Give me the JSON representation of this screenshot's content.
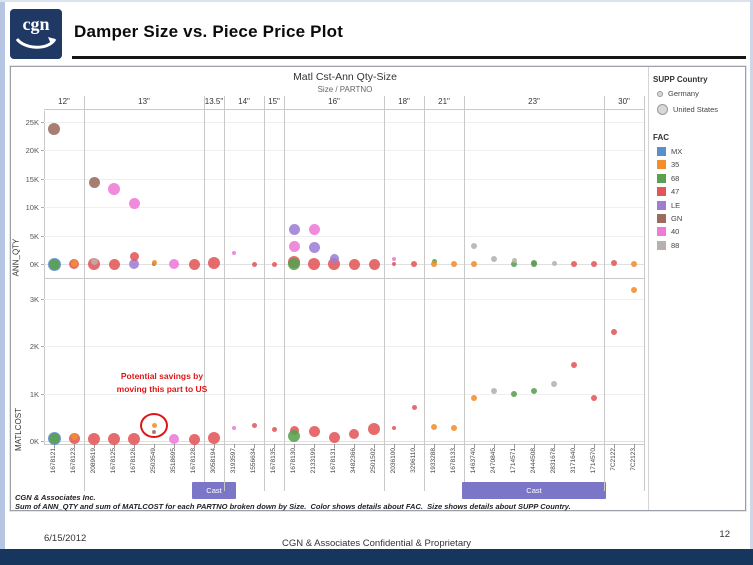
{
  "header": {
    "logo": "cgn",
    "title": "Damper Size vs. Piece Price Plot"
  },
  "footnotes": {
    "line1": "CGN & Associates Inc.",
    "line2": "Sum of ANN_QTY and sum of MATLCOST for each PARTNO broken down by Size.  Color shows details about FAC.  Size shows details about SUPP Country."
  },
  "slide_footer": {
    "date": "6/15/2012",
    "center": "CGN & Associates Confidential & Proprietary",
    "page": "12"
  },
  "legend": {
    "supp_country": {
      "title": "SUPP Country",
      "items": [
        {
          "label": "Germany",
          "d": 6
        },
        {
          "label": "United States",
          "d": 11
        }
      ]
    },
    "fac": {
      "title": "FAC",
      "items": [
        {
          "code": "MX",
          "color": "#5b8fc9"
        },
        {
          "code": "35",
          "color": "#f28e2b"
        },
        {
          "code": "68",
          "color": "#59a14f"
        },
        {
          "code": "47",
          "color": "#e15759"
        },
        {
          "code": "LE",
          "color": "#9d7ed4"
        },
        {
          "code": "GN",
          "color": "#9c6b5e"
        },
        {
          "code": "40",
          "color": "#ed7bd7"
        },
        {
          "code": "88",
          "color": "#b7b0ad"
        }
      ]
    }
  },
  "annotation": {
    "lines": [
      "Potential savings by",
      "moving this part to US"
    ],
    "circled_part": "2503549"
  },
  "cast_label": "Cast",
  "chart_data": {
    "type": "scatter",
    "title": "Matl Cst-Ann Qty-Size",
    "x_axis_label": "Size / PARTNO",
    "legend_position": "right",
    "grid": "faint horizontal gridlines, panel column dividers",
    "panels": [
      {
        "label": "ANN_QTY",
        "ylim": [
          0,
          25
        ],
        "unit": "K",
        "ticks": [
          {
            "t": "0K",
            "v": 0
          },
          {
            "t": "5K",
            "v": 5
          },
          {
            "t": "10K",
            "v": 10
          },
          {
            "t": "15K",
            "v": 15
          },
          {
            "t": "20K",
            "v": 20
          },
          {
            "t": "25K",
            "v": 25
          }
        ]
      },
      {
        "label": "MATLCOST",
        "ylim": [
          0,
          3
        ],
        "unit": "K",
        "ticks": [
          {
            "t": "0K",
            "v": 0
          },
          {
            "t": "1K",
            "v": 1
          },
          {
            "t": "2K",
            "v": 2
          },
          {
            "t": "3K",
            "v": 3
          }
        ]
      }
    ],
    "sizes": [
      {
        "label": "12\"",
        "parts": [
          {
            "pn": "1678121",
            "top": [
              {
                "f": "MX",
                "v": 0,
                "d": 13
              },
              {
                "f": "68",
                "v": 0,
                "d": 11
              },
              {
                "f": "GN",
                "v": 23.7,
                "d": 12
              }
            ],
            "bot": [
              {
                "f": "MX",
                "v": 0.05,
                "d": 13
              },
              {
                "f": "68",
                "v": 0.05,
                "d": 11
              }
            ]
          },
          {
            "pn": "1678123",
            "top": [
              {
                "f": "47",
                "v": 0,
                "d": 10
              },
              {
                "f": "35",
                "v": 0.1,
                "d": 7
              }
            ],
            "bot": [
              {
                "f": "47",
                "v": 0.05,
                "d": 11
              },
              {
                "f": "35",
                "v": 0.1,
                "d": 7
              }
            ]
          }
        ]
      },
      {
        "label": "13\"",
        "parts": [
          {
            "pn": "2089619",
            "top": [
              {
                "f": "47",
                "v": 0,
                "d": 12
              },
              {
                "f": "88",
                "v": 0.4,
                "d": 7
              },
              {
                "f": "GN",
                "v": 14.3,
                "d": 11
              }
            ],
            "bot": [
              {
                "f": "47",
                "v": 0.05,
                "d": 12
              }
            ]
          },
          {
            "pn": "1678125",
            "top": [
              {
                "f": "47",
                "v": 0,
                "d": 11
              },
              {
                "f": "40",
                "v": 13.2,
                "d": 12
              }
            ],
            "bot": [
              {
                "f": "47",
                "v": 0.05,
                "d": 12
              }
            ]
          },
          {
            "pn": "1678126",
            "top": [
              {
                "f": "LE",
                "v": 0,
                "d": 10
              },
              {
                "f": "47",
                "v": 1.4,
                "d": 9
              },
              {
                "f": "40",
                "v": 10.7,
                "d": 11
              }
            ],
            "bot": [
              {
                "f": "47",
                "v": 0.05,
                "d": 12
              }
            ]
          },
          {
            "pn": "2503549",
            "top": [
              {
                "f": "GN",
                "v": 0,
                "d": 4
              },
              {
                "f": "35",
                "v": 0.3,
                "d": 5
              }
            ],
            "bot": [
              {
                "f": "GN",
                "v": 0.18,
                "d": 4
              },
              {
                "f": "35",
                "v": 0.32,
                "d": 5
              }
            ]
          },
          {
            "pn": "3518695",
            "top": [
              {
                "f": "40",
                "v": 0,
                "d": 10
              }
            ],
            "bot": [
              {
                "f": "40",
                "v": 0.04,
                "d": 10
              }
            ]
          },
          {
            "pn": "1678128",
            "top": [
              {
                "f": "47",
                "v": 0,
                "d": 11
              }
            ],
            "bot": [
              {
                "f": "47",
                "v": 0.04,
                "d": 11
              }
            ]
          }
        ]
      },
      {
        "label": "13.5\"",
        "cast": true,
        "parts": [
          {
            "pn": "3058194",
            "top": [
              {
                "f": "47",
                "v": 0.15,
                "d": 12
              }
            ],
            "bot": [
              {
                "f": "47",
                "v": 0.07,
                "d": 12
              }
            ]
          }
        ]
      },
      {
        "label": "14\"",
        "parts": [
          {
            "pn": "3193597",
            "top": [
              {
                "f": "40",
                "v": 1.9,
                "d": 4
              }
            ],
            "bot": [
              {
                "f": "40",
                "v": 0.28,
                "d": 4
              }
            ]
          },
          {
            "pn": "1556634",
            "top": [
              {
                "f": "47",
                "v": 0,
                "d": 5
              }
            ],
            "bot": [
              {
                "f": "47",
                "v": 0.33,
                "d": 5
              }
            ]
          }
        ]
      },
      {
        "label": "15\"",
        "parts": [
          {
            "pn": "1678135",
            "top": [
              {
                "f": "47",
                "v": 0,
                "d": 5
              }
            ],
            "bot": [
              {
                "f": "47",
                "v": 0.24,
                "d": 5
              }
            ]
          }
        ]
      },
      {
        "label": "16\"",
        "parts": [
          {
            "pn": "1678130",
            "top": [
              {
                "f": "47",
                "v": 0.35,
                "d": 12
              },
              {
                "f": "68",
                "v": 0,
                "d": 12
              },
              {
                "f": "40",
                "v": 3.0,
                "d": 11
              },
              {
                "f": "LE",
                "v": 6.1,
                "d": 11
              }
            ],
            "bot": [
              {
                "f": "47",
                "v": 0.22,
                "d": 9
              },
              {
                "f": "68",
                "v": 0.1,
                "d": 12
              }
            ]
          },
          {
            "pn": "2133199",
            "top": [
              {
                "f": "47",
                "v": 0,
                "d": 12
              },
              {
                "f": "LE",
                "v": 2.9,
                "d": 11
              },
              {
                "f": "40",
                "v": 6.0,
                "d": 11
              }
            ],
            "bot": [
              {
                "f": "47",
                "v": 0.2,
                "d": 11
              }
            ]
          },
          {
            "pn": "1678131",
            "top": [
              {
                "f": "47",
                "v": 0,
                "d": 12
              },
              {
                "f": "LE",
                "v": 0.9,
                "d": 9
              }
            ],
            "bot": [
              {
                "f": "47",
                "v": 0.08,
                "d": 11
              }
            ]
          },
          {
            "pn": "3482366",
            "top": [
              {
                "f": "47",
                "v": 0,
                "d": 11
              }
            ],
            "bot": [
              {
                "f": "47",
                "v": 0.14,
                "d": 10
              }
            ]
          },
          {
            "pn": "2501502",
            "top": [
              {
                "f": "47",
                "v": 0,
                "d": 11
              }
            ],
            "bot": [
              {
                "f": "47",
                "v": 0.26,
                "d": 12
              }
            ]
          }
        ]
      },
      {
        "label": "18\"",
        "parts": [
          {
            "pn": "2036100",
            "top": [
              {
                "f": "40",
                "v": 0.85,
                "d": 4
              },
              {
                "f": "47",
                "v": 0,
                "d": 4
              }
            ],
            "bot": [
              {
                "f": "47",
                "v": 0.28,
                "d": 4
              }
            ]
          },
          {
            "pn": "3296110",
            "top": [
              {
                "f": "47",
                "v": 0,
                "d": 6
              }
            ],
            "bot": [
              {
                "f": "47",
                "v": 0.7,
                "d": 5
              }
            ]
          }
        ]
      },
      {
        "label": "21\"",
        "parts": [
          {
            "pn": "1933288",
            "top": [
              {
                "f": "68",
                "v": 0.45,
                "d": 5
              },
              {
                "f": "35",
                "v": 0,
                "d": 6
              }
            ],
            "bot": [
              {
                "f": "35",
                "v": 0.3,
                "d": 6
              }
            ]
          },
          {
            "pn": "1678133",
            "top": [
              {
                "f": "35",
                "v": 0,
                "d": 6
              }
            ],
            "bot": [
              {
                "f": "35",
                "v": 0.27,
                "d": 6
              }
            ]
          }
        ]
      },
      {
        "label": "23\"",
        "cast": true,
        "parts": [
          {
            "pn": "1463740",
            "top": [
              {
                "f": "35",
                "v": 0,
                "d": 6
              },
              {
                "f": "88",
                "v": 3.2,
                "d": 6
              }
            ],
            "bot": [
              {
                "f": "35",
                "v": 0.9,
                "d": 6
              }
            ]
          },
          {
            "pn": "2470845",
            "top": [
              {
                "f": "88",
                "v": 0.95,
                "d": 6
              }
            ],
            "bot": [
              {
                "f": "88",
                "v": 1.05,
                "d": 6
              }
            ]
          },
          {
            "pn": "1714571",
            "top": [
              {
                "f": "68",
                "v": 0,
                "d": 6
              },
              {
                "f": "88",
                "v": 0.55,
                "d": 5
              }
            ],
            "bot": [
              {
                "f": "68",
                "v": 1.0,
                "d": 6
              }
            ]
          },
          {
            "pn": "2444508",
            "top": [
              {
                "f": "68",
                "v": 0.2,
                "d": 6
              },
              {
                "f": "68",
                "v": 0,
                "d": 6
              }
            ],
            "bot": [
              {
                "f": "68",
                "v": 1.05,
                "d": 6
              }
            ]
          },
          {
            "pn": "2831678",
            "top": [
              {
                "f": "88",
                "v": 0.05,
                "d": 5
              }
            ],
            "bot": [
              {
                "f": "88",
                "v": 1.2,
                "d": 6
              }
            ]
          },
          {
            "pn": "3171640",
            "top": [
              {
                "f": "47",
                "v": 0,
                "d": 6
              }
            ],
            "bot": [
              {
                "f": "47",
                "v": 1.6,
                "d": 6
              }
            ]
          },
          {
            "pn": "1714570",
            "top": [
              {
                "f": "47",
                "v": 0,
                "d": 6
              }
            ],
            "bot": [
              {
                "f": "47",
                "v": 0.9,
                "d": 6
              }
            ]
          }
        ]
      },
      {
        "label": "30\"",
        "parts": [
          {
            "pn": "7C2122",
            "top": [
              {
                "f": "47",
                "v": 0.1,
                "d": 6
              }
            ],
            "bot": [
              {
                "f": "47",
                "v": 2.3,
                "d": 6
              }
            ]
          },
          {
            "pn": "7C2123",
            "top": [
              {
                "f": "35",
                "v": 0,
                "d": 6
              }
            ],
            "bot": [
              {
                "f": "35",
                "v": 3.2,
                "d": 6
              }
            ]
          }
        ]
      }
    ]
  }
}
